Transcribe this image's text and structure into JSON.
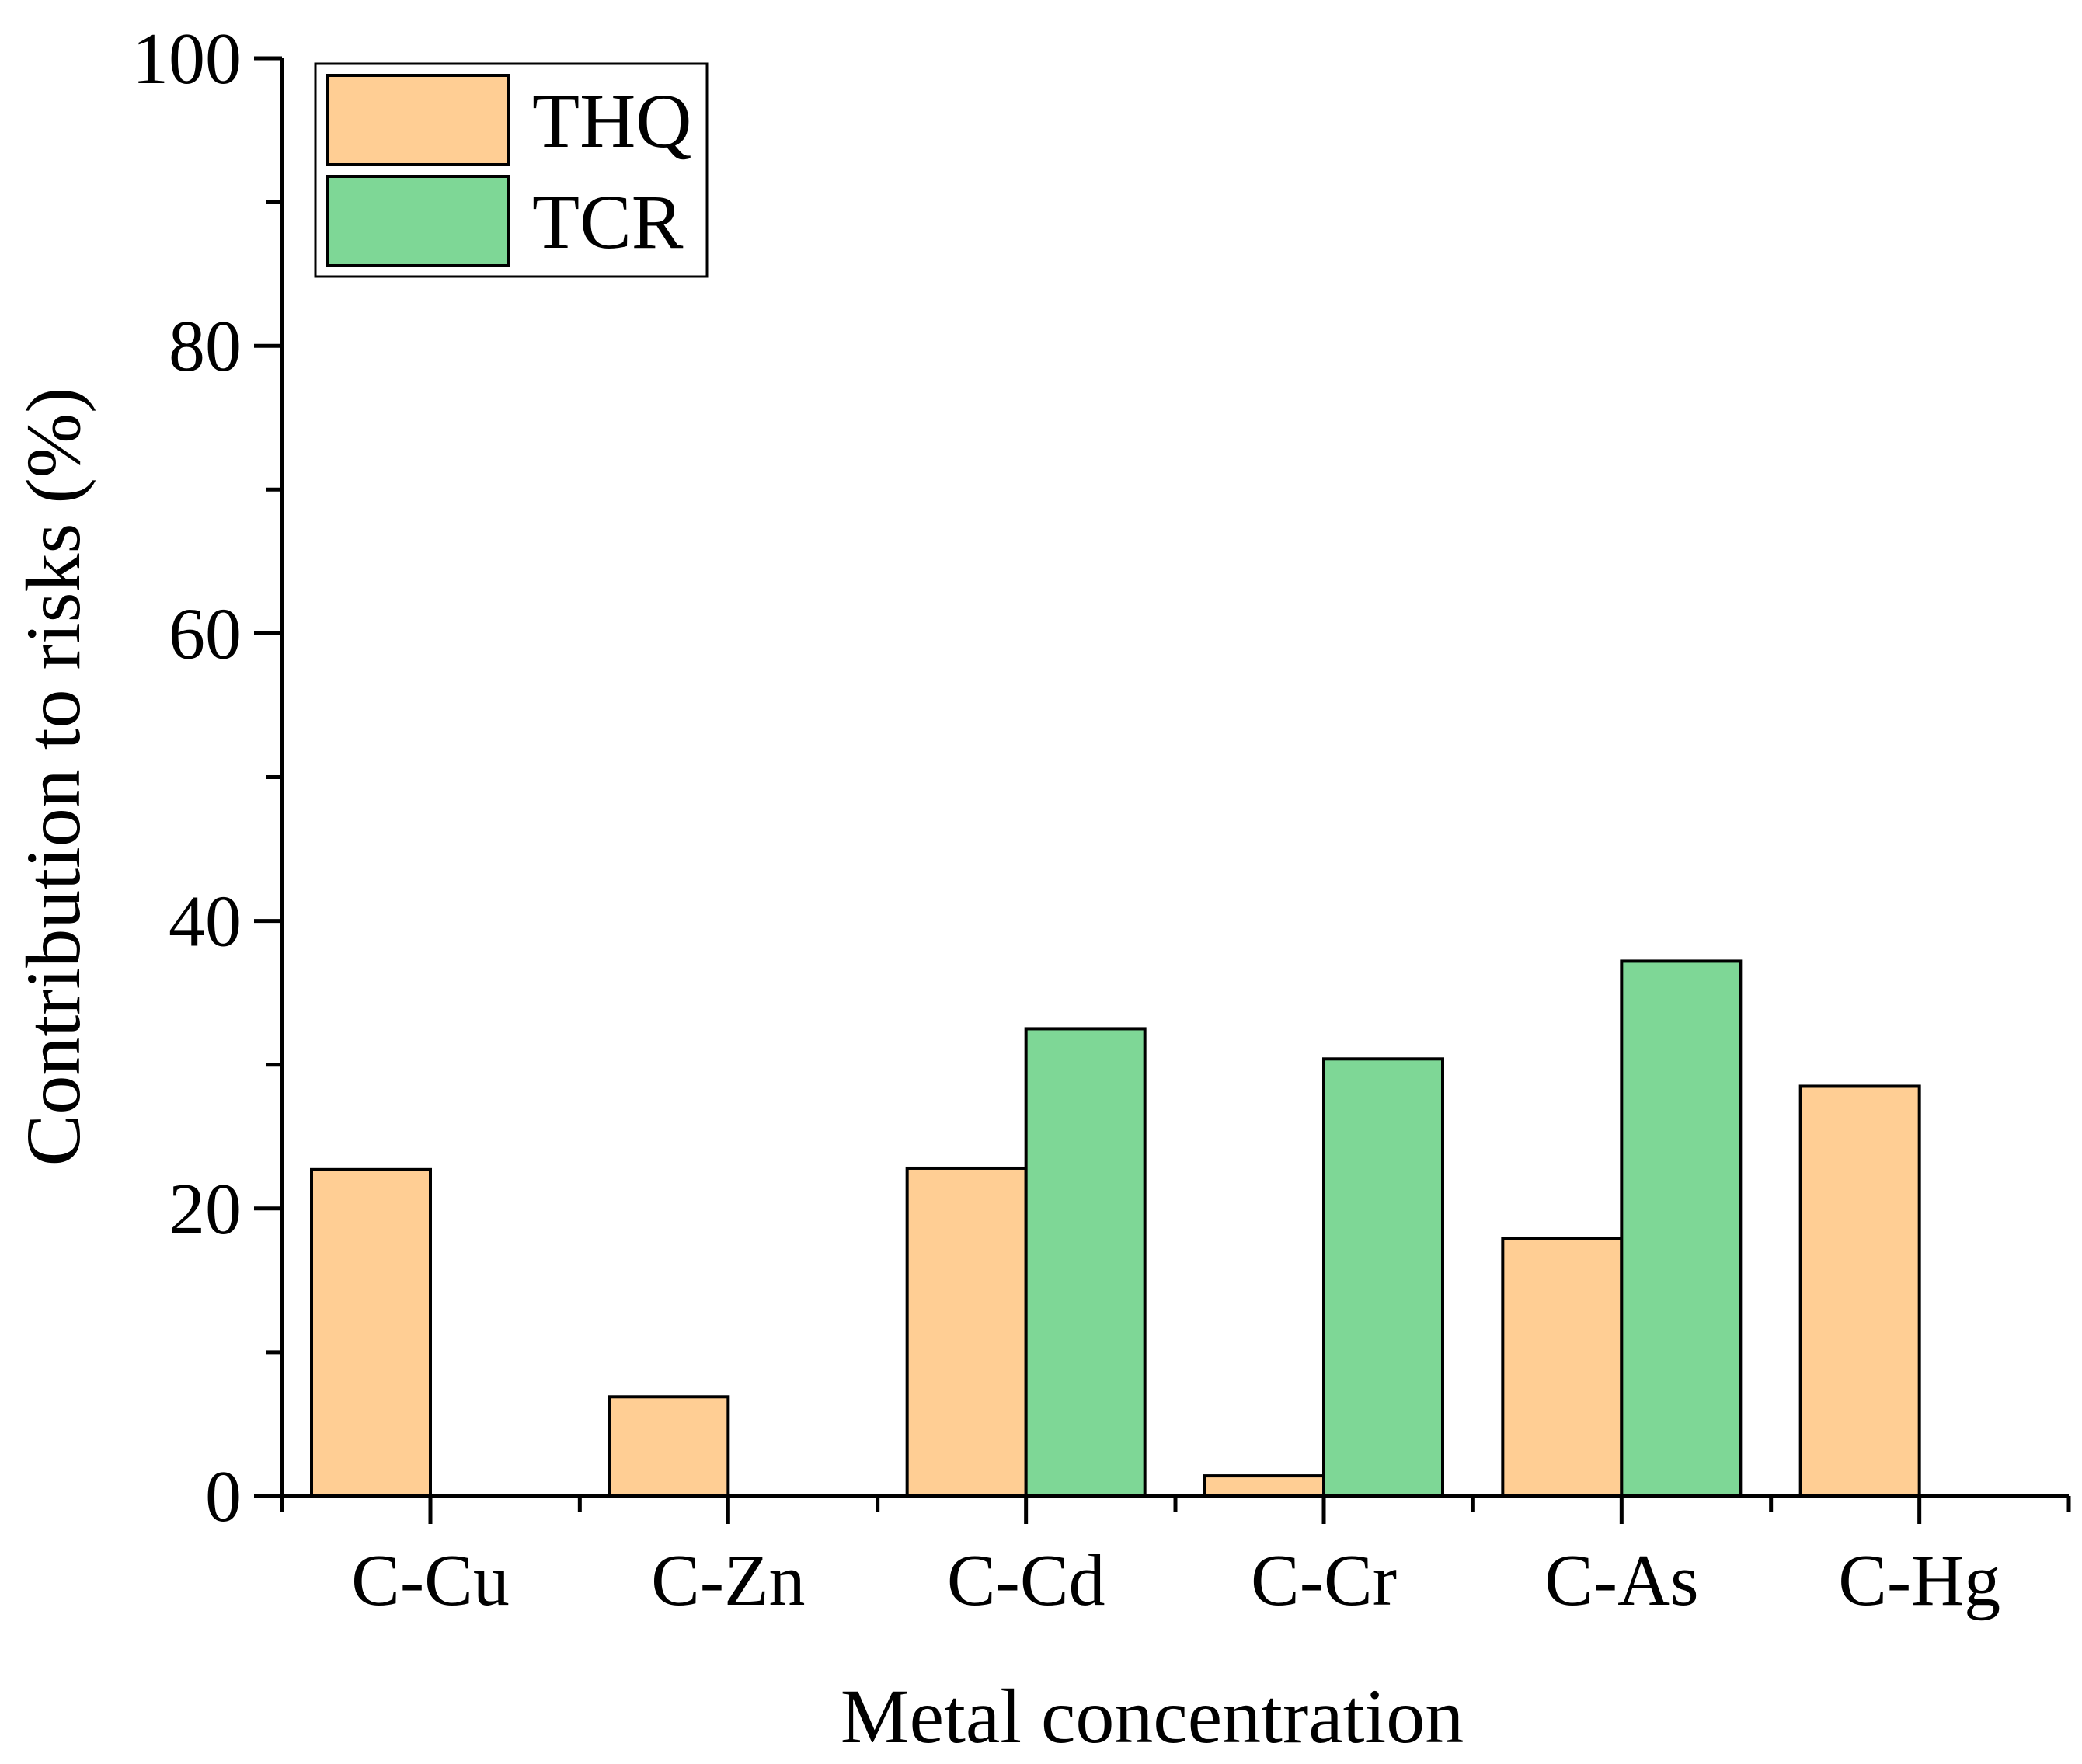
{
  "chart_data": {
    "type": "bar",
    "title": "",
    "xlabel": "Metal concentration",
    "ylabel": "Contribution to risks (%)",
    "categories": [
      "C-Cu",
      "C-Zn",
      "C-Cd",
      "C-Cr",
      "C-As",
      "C-Hg"
    ],
    "series": [
      {
        "name": "THQ",
        "color": "#FFCE94",
        "values": [
          22.7,
          6.9,
          22.8,
          1.4,
          17.9,
          28.5
        ]
      },
      {
        "name": "TCR",
        "color": "#7ED796",
        "values": [
          0,
          0,
          32.5,
          30.4,
          37.2,
          0
        ]
      }
    ],
    "ylim": [
      0,
      100
    ],
    "yticks": [
      0,
      20,
      40,
      60,
      80,
      100
    ],
    "yticks_labels": [
      "0",
      "20",
      "40",
      "60",
      "80",
      "100"
    ],
    "grid": false,
    "legend_position": "top-left"
  }
}
